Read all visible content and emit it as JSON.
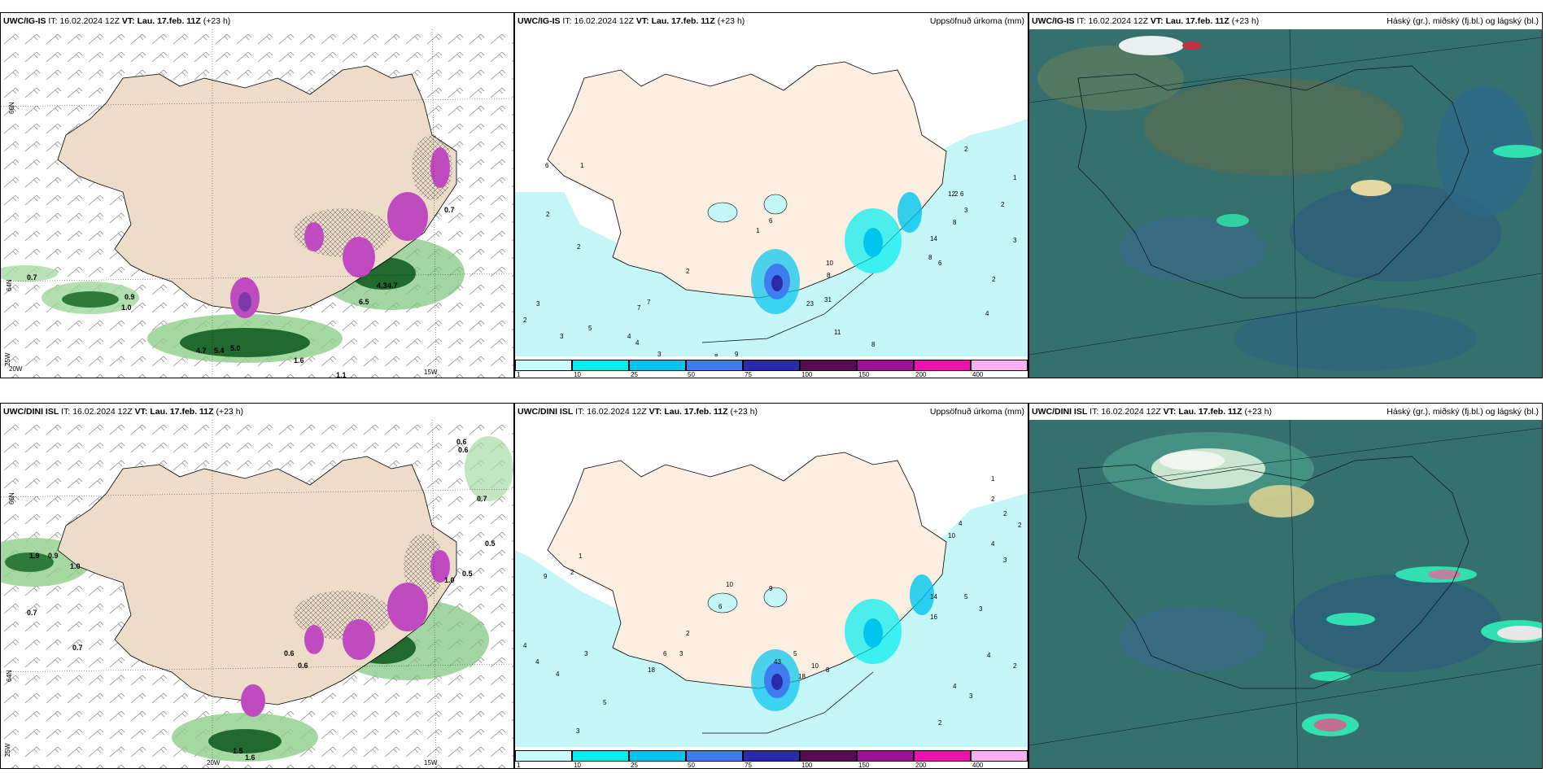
{
  "panels": [
    {
      "model": "UWC/IG-IS",
      "it_label": "IT:",
      "it_value": "16.02.2024 12Z",
      "vt_label": "VT:",
      "vt_value": "Lau. 17.feb. 11Z",
      "lead": "(+23 h)",
      "right_title": ""
    },
    {
      "model": "UWC/IG-IS",
      "it_label": "IT:",
      "it_value": "16.02.2024 12Z",
      "vt_label": "VT:",
      "vt_value": "Lau. 17.feb. 11Z",
      "lead": "(+23 h)",
      "right_title": "Uppsöfnuð úrkoma (mm)"
    },
    {
      "model": "UWC/IG-IS",
      "it_label": "IT:",
      "it_value": "16.02.2024 12Z",
      "vt_label": "VT:",
      "vt_value": "Lau. 17.feb. 11Z",
      "lead": "(+23 h)",
      "right_title": "Háský (gr.), miðský (fj.bl.) og lágský (bl.)"
    },
    {
      "model": "UWC/DINI ISL",
      "it_label": "IT:",
      "it_value": "16.02.2024 12Z",
      "vt_label": "VT:",
      "vt_value": "Lau. 17.feb. 11Z",
      "lead": "(+23 h)",
      "right_title": ""
    },
    {
      "model": "UWC/DINI ISL",
      "it_label": "IT:",
      "it_value": "16.02.2024 12Z",
      "vt_label": "VT:",
      "vt_value": "Lau. 17.feb. 11Z",
      "lead": "(+23 h)",
      "right_title": "Uppsöfnuð úrkoma (mm)"
    },
    {
      "model": "UWC/DINI ISL",
      "it_label": "IT:",
      "it_value": "16.02.2024 12Z",
      "vt_label": "VT:",
      "vt_value": "Lau. 17.feb. 11Z",
      "lead": "(+23 h)",
      "right_title": "Háský (gr.), miðský (fj.bl.) og lágský (bl.)"
    }
  ],
  "precip_legend": {
    "ticks": [
      "1",
      "10",
      "25",
      "50",
      "75",
      "100",
      "150",
      "200",
      "400"
    ],
    "colors": [
      "#c8fbfb",
      "#00eeee",
      "#00c5ee",
      "#3f7cf0",
      "#2a2aa8",
      "#5a0a50",
      "#9a109a",
      "#f010b0",
      "#f5b0f0"
    ]
  },
  "wind_map_labels": {
    "top": [
      "0.7",
      "0.9",
      "1.0",
      "4.7",
      "5.4",
      "5.0",
      "1.6",
      "1.1",
      "0.7",
      "6.5",
      "4.3",
      "4.7"
    ],
    "bottom": [
      "0.6",
      "0.6",
      "0.7",
      "1.9",
      "0.9",
      "1.0",
      "0.7",
      "0.7",
      "0.5",
      "1.0",
      "0.5",
      "0.6",
      "0.6",
      "1.5",
      "1.6"
    ],
    "axis": {
      "lon_a": "20W",
      "lon_b": "15W",
      "lat_a": "66N",
      "lat_b": "64N",
      "lat_c": "25W"
    }
  },
  "precip_map_labels": {
    "top": [
      "6",
      "2",
      "1",
      "2",
      "2",
      "7",
      "6",
      "1",
      "3",
      "2",
      "3",
      "5",
      "4",
      "4",
      "3",
      "7",
      "8",
      "9",
      "23",
      "31",
      "10",
      "8",
      "11",
      "2",
      "12",
      "6",
      "3",
      "8",
      "14",
      "6",
      "8",
      "2",
      "4",
      "8",
      "1",
      "2",
      "2",
      "3"
    ],
    "bottom": [
      "9",
      "2",
      "1",
      "4",
      "4",
      "4",
      "3",
      "5",
      "3",
      "2",
      "10",
      "6",
      "9",
      "6",
      "3",
      "18",
      "5",
      "18",
      "43",
      "10",
      "8",
      "14",
      "16",
      "5",
      "3",
      "4",
      "3",
      "4",
      "2",
      "10",
      "4",
      "2",
      "1",
      "2",
      "2",
      "4",
      "3",
      "2"
    ]
  },
  "colors": {
    "land": "#ecdcc8",
    "land_precip": "#fcefe2",
    "sea_precip": "#c5f6f8",
    "cloud_base": "#36706e"
  }
}
